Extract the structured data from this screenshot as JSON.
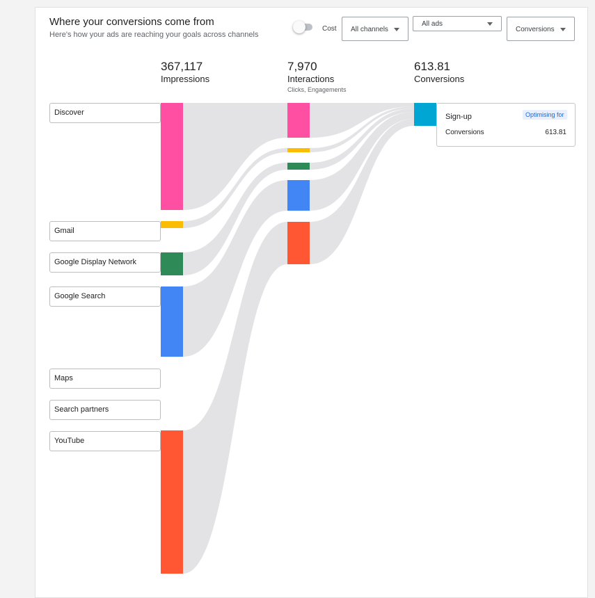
{
  "header": {
    "title": "Where your conversions come from",
    "subtitle": "Here's how your ads are reaching your goals across channels"
  },
  "controls": {
    "cost_toggle_label": "Cost",
    "cost_toggle_on": false,
    "channel_filter": "All channels",
    "ads_filter": "All ads",
    "metric_filter": "Conversions"
  },
  "stages": [
    {
      "value": "367,117",
      "label": "Impressions",
      "sub": ""
    },
    {
      "value": "7,970",
      "label": "Interactions",
      "sub": "Clicks, Engagements"
    },
    {
      "value": "613.81",
      "label": "Conversions",
      "sub": ""
    }
  ],
  "tooltip": {
    "goal": "Sign-up",
    "badge": "Optimising for",
    "metric": "Conversions",
    "value": "613.81"
  },
  "chart_data": {
    "type": "sankey",
    "stages": [
      "Impressions",
      "Interactions",
      "Conversions"
    ],
    "totals": [
      367117,
      7970,
      613.81
    ],
    "channels": [
      {
        "name": "Discover",
        "color": "#ff4fa3",
        "impressions_share": 0.208,
        "interactions_share": 0.21
      },
      {
        "name": "Gmail",
        "color": "#fbbc04",
        "impressions_share": 0.012,
        "interactions_share": 0.02
      },
      {
        "name": "Google Display Network",
        "color": "#2e8b57",
        "impressions_share": 0.045,
        "interactions_share": 0.03
      },
      {
        "name": "Google Search",
        "color": "#4285f4",
        "impressions_share": 0.137,
        "interactions_share": 0.2
      },
      {
        "name": "Maps",
        "color": "",
        "impressions_share": 0,
        "interactions_share": 0
      },
      {
        "name": "Search partners",
        "color": "",
        "impressions_share": 0,
        "interactions_share": 0
      },
      {
        "name": "YouTube",
        "color": "#ff5733",
        "impressions_share": 0.28,
        "interactions_share": 0.29
      }
    ],
    "conversion_goal": {
      "name": "Sign-up",
      "color": "#00a6d3",
      "value": 613.81
    }
  }
}
